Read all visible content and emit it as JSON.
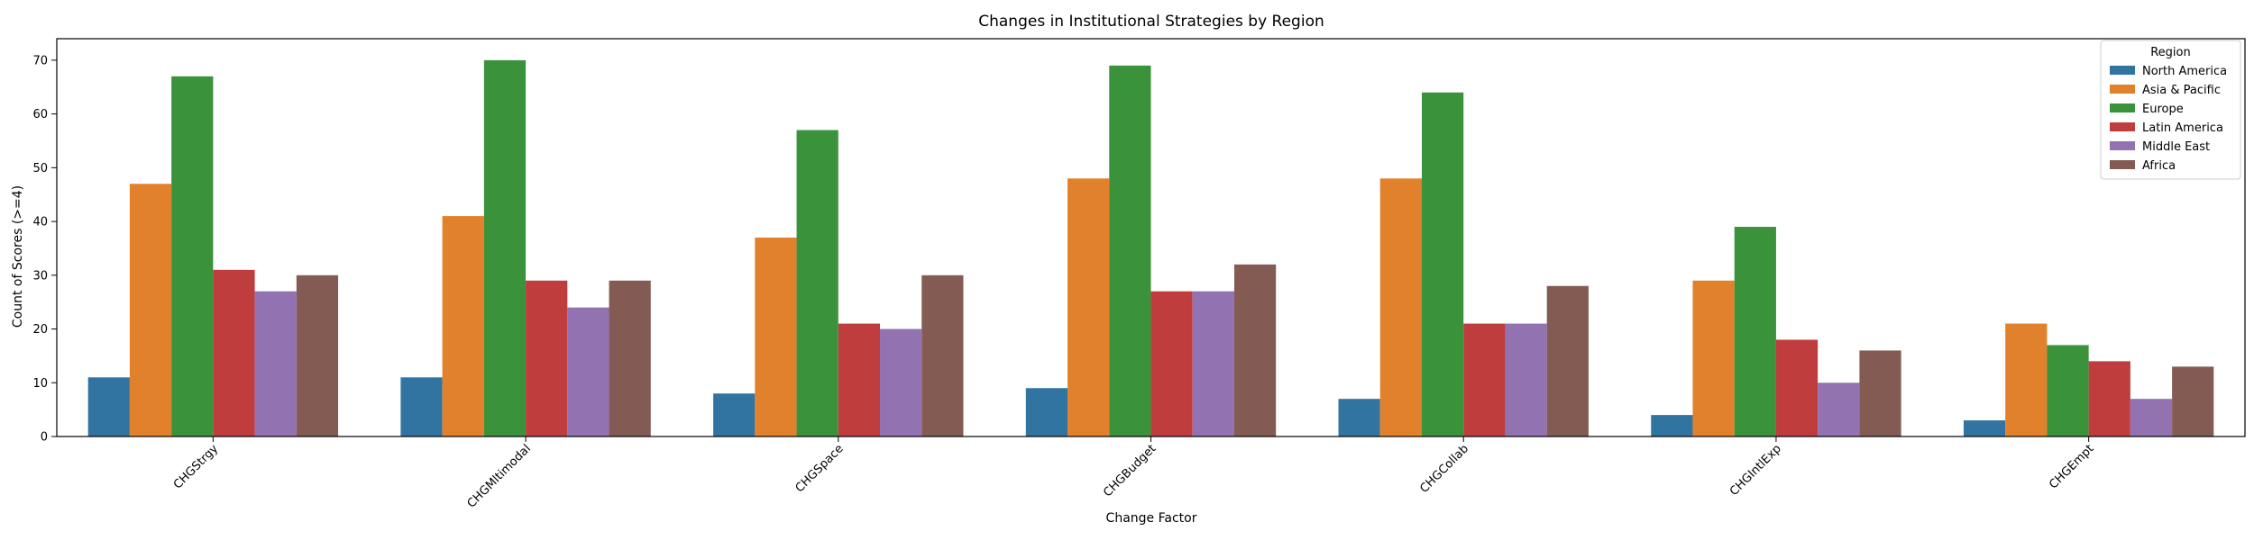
{
  "chart_data": {
    "type": "bar",
    "title": "Changes in Institutional Strategies by Region",
    "xlabel": "Change Factor",
    "ylabel": "Count of Scores (>=4)",
    "ylim": [
      0,
      74
    ],
    "yticks": [
      0,
      10,
      20,
      30,
      40,
      50,
      60,
      70
    ],
    "grid": false,
    "legend": {
      "title": "Region",
      "placement": "top-right"
    },
    "categories": [
      "CHGStrgy",
      "CHGMltimodal",
      "CHGSpace",
      "CHGBudget",
      "CHGCollab",
      "CHGIntlExp",
      "CHGEmpt"
    ],
    "series": [
      {
        "name": "North America",
        "color": "#3274a1",
        "values": [
          11,
          11,
          8,
          9,
          7,
          4,
          3
        ]
      },
      {
        "name": "Asia & Pacific",
        "color": "#e1812c",
        "values": [
          47,
          41,
          37,
          48,
          48,
          29,
          21
        ]
      },
      {
        "name": "Europe",
        "color": "#3a923a",
        "values": [
          67,
          70,
          57,
          69,
          64,
          39,
          17
        ]
      },
      {
        "name": "Latin America",
        "color": "#c03d3e",
        "values": [
          31,
          29,
          21,
          27,
          21,
          18,
          14
        ]
      },
      {
        "name": "Middle East",
        "color": "#9372b2",
        "values": [
          27,
          24,
          20,
          27,
          21,
          10,
          7
        ]
      },
      {
        "name": "Africa",
        "color": "#845b53",
        "values": [
          30,
          29,
          30,
          32,
          28,
          16,
          13
        ]
      }
    ]
  }
}
